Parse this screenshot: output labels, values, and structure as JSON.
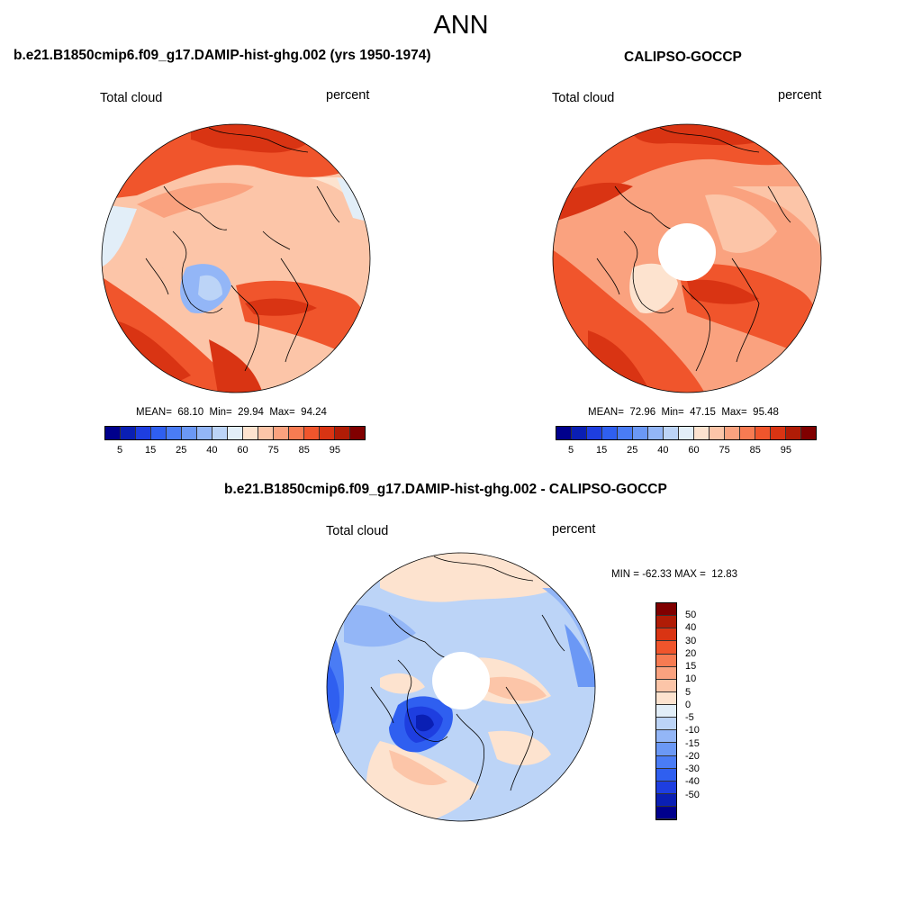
{
  "figure": {
    "title": "ANN"
  },
  "panels": {
    "model": {
      "title": "b.e21.B1850cmip6.f09_g17.DAMIP-hist-ghg.002 (yrs 1950-1974)",
      "variable": "Total cloud",
      "units": "percent",
      "stats": {
        "mean_label": "MEAN=",
        "mean": "68.10",
        "min_label": "Min=",
        "min": "29.94",
        "max_label": "Max=",
        "max": "94.24"
      }
    },
    "obs": {
      "title": "CALIPSO-GOCCP",
      "variable": "Total cloud",
      "units": "percent",
      "stats": {
        "mean_label": "MEAN=",
        "mean": "72.96",
        "min_label": "Min=",
        "min": "47.15",
        "max_label": "Max=",
        "max": "95.48"
      }
    },
    "diff": {
      "title": "b.e21.B1850cmip6.f09_g17.DAMIP-hist-ghg.002 - CALIPSO-GOCCP",
      "variable": "Total cloud",
      "units": "percent",
      "stats": {
        "min_label": "MIN =",
        "min": "-62.33",
        "max_label": "MAX =",
        "max": "12.83"
      }
    }
  },
  "chart_data": [
    {
      "type": "heatmap",
      "projection": "north-polar-stereographic",
      "title": "b.e21.B1850cmip6.f09_g17.DAMIP-hist-ghg.002 (yrs 1950-1974)",
      "variable": "Total cloud",
      "units": "percent",
      "mean": 68.1,
      "min": 29.94,
      "max": 94.24,
      "colorbar": {
        "levels": [
          5,
          10,
          15,
          20,
          25,
          30,
          40,
          50,
          60,
          70,
          75,
          80,
          85,
          90,
          95
        ],
        "tick_labels": [
          "5",
          "15",
          "25",
          "40",
          "60",
          "75",
          "85",
          "95"
        ],
        "colors": [
          "#00008c",
          "#0a1fb4",
          "#1e3ee0",
          "#2f5ff0",
          "#4a7cf5",
          "#6b98f5",
          "#93b6f7",
          "#bcd4f7",
          "#e2eef8",
          "#fde3cf",
          "#fcc5a8",
          "#faa27f",
          "#f77b52",
          "#f0552c",
          "#d93413",
          "#b01c06",
          "#800000"
        ]
      }
    },
    {
      "type": "heatmap",
      "projection": "north-polar-stereographic",
      "title": "CALIPSO-GOCCP",
      "variable": "Total cloud",
      "units": "percent",
      "mean": 72.96,
      "min": 47.15,
      "max": 95.48,
      "colorbar": {
        "levels": [
          5,
          10,
          15,
          20,
          25,
          30,
          40,
          50,
          60,
          70,
          75,
          80,
          85,
          90,
          95
        ],
        "tick_labels": [
          "5",
          "15",
          "25",
          "40",
          "60",
          "75",
          "85",
          "95"
        ],
        "colors": [
          "#00008c",
          "#0a1fb4",
          "#1e3ee0",
          "#2f5ff0",
          "#4a7cf5",
          "#6b98f5",
          "#93b6f7",
          "#bcd4f7",
          "#e2eef8",
          "#fde3cf",
          "#fcc5a8",
          "#faa27f",
          "#f77b52",
          "#f0552c",
          "#d93413",
          "#b01c06",
          "#800000"
        ]
      }
    },
    {
      "type": "heatmap",
      "projection": "north-polar-stereographic",
      "title": "b.e21.B1850cmip6.f09_g17.DAMIP-hist-ghg.002 - CALIPSO-GOCCP",
      "variable": "Total cloud",
      "units": "percent",
      "min": -62.33,
      "max": 12.83,
      "colorbar": {
        "orientation": "vertical",
        "tick_labels": [
          "50",
          "40",
          "30",
          "20",
          "15",
          "10",
          "5",
          "0",
          "-5",
          "-10",
          "-15",
          "-20",
          "-30",
          "-40",
          "-50"
        ],
        "colors": [
          "#800000",
          "#b01c06",
          "#d93413",
          "#f0552c",
          "#f77b52",
          "#faa27f",
          "#fcc5a8",
          "#fde3cf",
          "#e2eef8",
          "#bcd4f7",
          "#93b6f7",
          "#6b98f5",
          "#4a7cf5",
          "#2f5ff0",
          "#1e3ee0",
          "#0a1fb4",
          "#00008c"
        ]
      }
    }
  ]
}
